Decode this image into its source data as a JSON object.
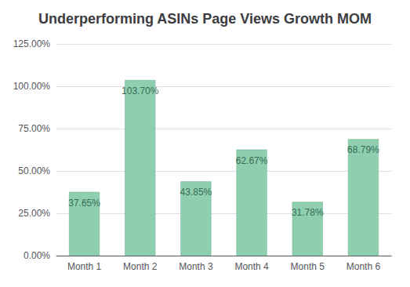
{
  "chart_data": {
    "type": "bar",
    "title": "Underperforming ASINs Page Views Growth MOM",
    "categories": [
      "Month 1",
      "Month 2",
      "Month 3",
      "Month 4",
      "Month 5",
      "Month 6"
    ],
    "values": [
      37.65,
      103.7,
      43.85,
      62.67,
      31.78,
      68.79
    ],
    "value_labels": [
      "37.65%",
      "103.70%",
      "43.85%",
      "62.67%",
      "31.78%",
      "68.79%"
    ],
    "data_labels": true,
    "color": "#8ecfb0",
    "ylim": [
      0,
      125
    ],
    "yticks": [
      {
        "value": 0,
        "label": "0.00%"
      },
      {
        "value": 25,
        "label": "25.00%"
      },
      {
        "value": 50,
        "label": "50.00%"
      },
      {
        "value": 75,
        "label": "75.00%"
      },
      {
        "value": 100,
        "label": "100.00%"
      },
      {
        "value": 125,
        "label": "125.00%"
      }
    ],
    "grid": true
  }
}
